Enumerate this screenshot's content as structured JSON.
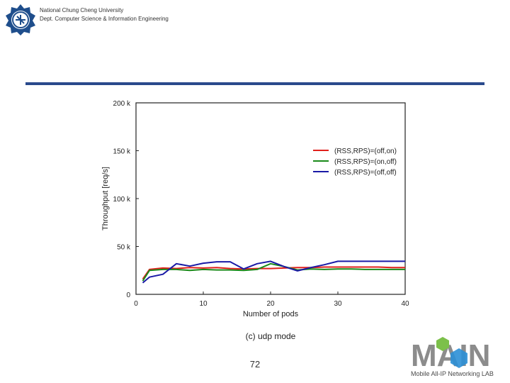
{
  "header": {
    "university": "National Chung Cheng University",
    "department": "Dept. Computer Science & Information Engineering"
  },
  "page_number": "72",
  "lab_logo": {
    "wordmark": "MAIN",
    "tagline": "Mobile All-IP Networking LAB",
    "colors": {
      "grey": "#8c8c8c",
      "green": "#7cc04a",
      "blue": "#2b8fd6",
      "dark": "#4a4a4a"
    }
  },
  "chart_data": {
    "type": "line",
    "title": "",
    "caption": "(c) udp mode",
    "xlabel": "Number of pods",
    "ylabel": "Throughput [req/s]",
    "xlim": [
      0,
      40
    ],
    "ylim": [
      0,
      200000
    ],
    "xticks": [
      0,
      10,
      20,
      30,
      40
    ],
    "xtick_labels": [
      "0",
      "10",
      "20",
      "30",
      "40"
    ],
    "yticks": [
      0,
      50000,
      100000,
      150000,
      200000
    ],
    "ytick_labels": [
      "0",
      "50 k",
      "100 k",
      "150 k",
      "200 k"
    ],
    "grid": false,
    "legend_position": "upper-right",
    "series": [
      {
        "name": "(RSS,RPS)=(off,on)",
        "color": "#e0201b",
        "x": [
          1,
          2,
          4,
          6,
          8,
          10,
          12,
          14,
          16,
          18,
          20,
          22,
          24,
          26,
          28,
          30,
          32,
          34,
          36,
          38,
          40
        ],
        "y": [
          16000,
          26000,
          27500,
          27000,
          28000,
          27500,
          28000,
          27000,
          26500,
          27000,
          27000,
          27500,
          28000,
          28000,
          28500,
          28500,
          28500,
          28500,
          28500,
          28000,
          28000
        ]
      },
      {
        "name": "(RSS,RPS)=(on,off)",
        "color": "#1a8a1a",
        "x": [
          1,
          2,
          4,
          6,
          8,
          10,
          12,
          14,
          16,
          18,
          20,
          22,
          24,
          26,
          28,
          30,
          32,
          34,
          36,
          38,
          40
        ],
        "y": [
          14000,
          25000,
          26000,
          26000,
          25000,
          26000,
          25500,
          25500,
          25000,
          26000,
          32000,
          29000,
          25500,
          26500,
          26000,
          26500,
          26500,
          26000,
          26000,
          26000,
          26000
        ]
      },
      {
        "name": "(RSS,RPS)=(off,off)",
        "color": "#1a1aa6",
        "x": [
          1,
          2,
          4,
          6,
          8,
          10,
          12,
          14,
          16,
          18,
          20,
          22,
          24,
          26,
          28,
          30,
          32,
          34,
          36,
          38,
          40
        ],
        "y": [
          12000,
          18000,
          21000,
          32000,
          29500,
          32500,
          34000,
          34000,
          26500,
          32000,
          34500,
          29000,
          24500,
          28000,
          31000,
          34500,
          34500,
          34500,
          34500,
          34500,
          34500
        ]
      }
    ]
  }
}
